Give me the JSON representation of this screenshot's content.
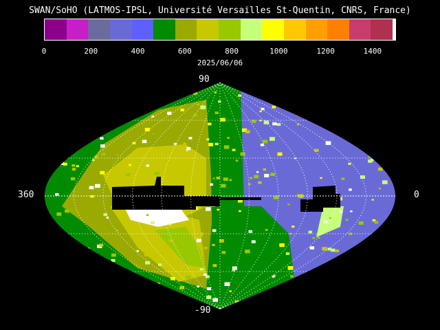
{
  "title": "SWAN/SoHO (LATMOS-IPSL, Université Versailles St-Quentin, CNRS, France)",
  "date": "2025/06/06",
  "colorbar": {
    "colors": [
      "#8b008b",
      "#c71fc7",
      "#6b6b9d",
      "#6a6ad7",
      "#5f5fff",
      "#008b00",
      "#9aaa00",
      "#c8c800",
      "#99c800",
      "#c6ff7a",
      "#ffff00",
      "#ffc800",
      "#ffa000",
      "#ff7f00",
      "#c83c6e",
      "#b03050",
      "#ffffff"
    ],
    "ticks": [
      "0",
      "200",
      "400",
      "600",
      "800",
      "1000",
      "1200",
      "1400"
    ]
  },
  "axis_labels": {
    "top": "90",
    "bottom": "-90",
    "left": "360",
    "right": "0"
  },
  "map_colors": {
    "background": "#000000",
    "blue": "#6a6ad7",
    "blue_dark": "#5f5fff",
    "green": "#008b00",
    "olive": "#9aaa00",
    "yellow_olive": "#c8c800",
    "light_green": "#99c800",
    "pale": "#c6ff7a",
    "bright": "#ffff00",
    "white": "#ffffff",
    "grid": "#ffffff"
  }
}
